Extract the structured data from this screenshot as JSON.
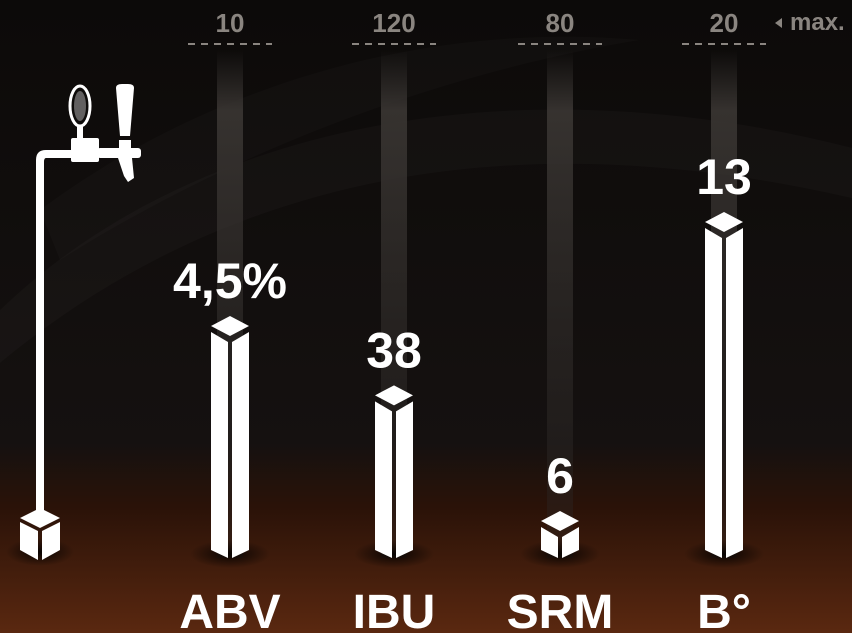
{
  "max_label": "max.",
  "colors": {
    "bar": "#ffffff",
    "track": "#3a3633",
    "maxline": "#8a8580",
    "text": "#ffffff",
    "floor_top": "#2a1208",
    "floor_bottom": "#5a2810"
  },
  "icons": [
    "beer-tap-icon",
    "cube-icon",
    "chevron-left-icon"
  ],
  "chart_data": {
    "type": "bar",
    "categories": [
      "ABV",
      "IBU",
      "SRM",
      "B°"
    ],
    "values": [
      4.5,
      38,
      6,
      13
    ],
    "value_labels": [
      "4,5%",
      "38",
      "6",
      "13"
    ],
    "max": [
      10,
      120,
      80,
      20
    ],
    "max_labels": [
      "10",
      "120",
      "80",
      "20"
    ],
    "title": "",
    "xlabel": "",
    "ylabel": "",
    "grid": false
  }
}
